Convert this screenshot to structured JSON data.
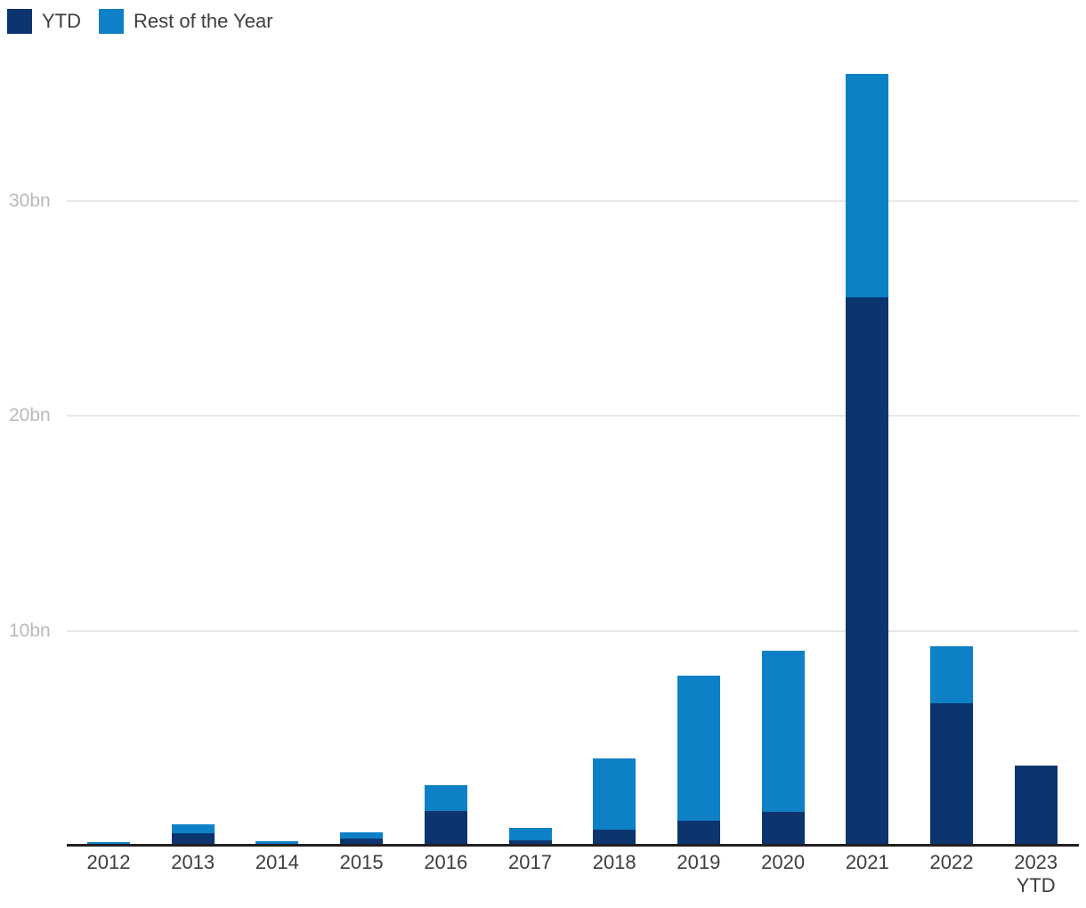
{
  "legend": {
    "items": [
      {
        "label": "YTD",
        "color": "#0c3570"
      },
      {
        "label": "Rest of the Year",
        "color": "#0e80c6"
      }
    ]
  },
  "chart_data": {
    "type": "bar",
    "subtype": "stacked",
    "title": "",
    "unit": "bn",
    "categories": [
      "2012",
      "2013",
      "2014",
      "2015",
      "2016",
      "2017",
      "2018",
      "2019",
      "2020",
      "2021",
      "2022",
      "2023 YTD"
    ],
    "x_tick_labels": [
      [
        "2012"
      ],
      [
        "2013"
      ],
      [
        "2014"
      ],
      [
        "2015"
      ],
      [
        "2016"
      ],
      [
        "2017"
      ],
      [
        "2018"
      ],
      [
        "2019"
      ],
      [
        "2020"
      ],
      [
        "2021"
      ],
      [
        "2022"
      ],
      [
        "2023",
        "YTD"
      ]
    ],
    "series": [
      {
        "name": "YTD",
        "color": "#0c3570",
        "values": [
          0.1,
          0.6,
          0.08,
          0.36,
          1.65,
          0.28,
          0.78,
          1.18,
          1.6,
          25.5,
          6.65,
          3.76
        ]
      },
      {
        "name": "Rest of the Year",
        "color": "#0e80c6",
        "values": [
          0.12,
          0.42,
          0.18,
          0.31,
          1.2,
          0.6,
          3.3,
          6.77,
          7.48,
          10.4,
          2.65,
          0
        ]
      }
    ],
    "totals": [
      0.22,
      1.02,
      0.26,
      0.67,
      2.85,
      0.88,
      4.08,
      7.95,
      9.08,
      35.9,
      9.3,
      3.76
    ],
    "y_ticks": [
      {
        "value": 10,
        "label": "10bn"
      },
      {
        "value": 20,
        "label": "20bn"
      },
      {
        "value": 30,
        "label": "30bn"
      }
    ],
    "ylim": [
      0,
      39.3
    ],
    "grid": true,
    "legend_position": "top-left",
    "colors": {
      "axis_line": "#231f20",
      "gridline": "#e7e7e7",
      "y_tick_text": "#b9b9b9",
      "x_tick_text": "#3d3d3d",
      "legend_text": "#3d3d3d"
    }
  }
}
